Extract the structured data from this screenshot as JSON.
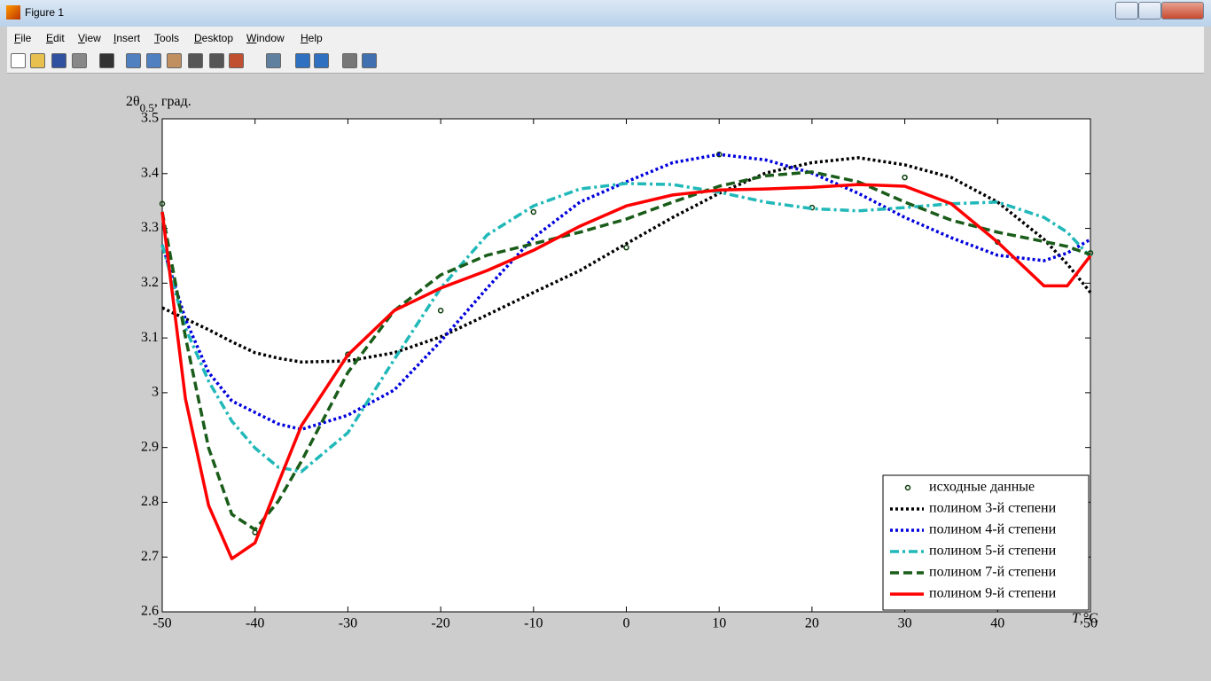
{
  "window": {
    "title": "Figure 1",
    "menu": [
      "File",
      "Edit",
      "View",
      "Insert",
      "Tools",
      "Desktop",
      "Window",
      "Help"
    ]
  },
  "chart_data": {
    "type": "line",
    "ylabel": [
      "2θ",
      "0.5",
      ", град."
    ],
    "xlabel": [
      "T",
      ",°C"
    ],
    "xlim": [
      -50,
      50
    ],
    "ylim": [
      2.6,
      3.5
    ],
    "xticks": [
      -50,
      -40,
      -30,
      -20,
      -10,
      0,
      10,
      20,
      30,
      40,
      50
    ],
    "yticks": [
      2.6,
      2.7,
      2.8,
      2.9,
      3,
      3.1,
      3.2,
      3.3,
      3.4,
      3.5
    ],
    "legend": "lower right",
    "x": [
      -50,
      -47.5,
      -45,
      -42.5,
      -40,
      -37.5,
      -35,
      -30,
      -25,
      -20,
      -15,
      -10,
      -5,
      0,
      5,
      10,
      15,
      20,
      25,
      30,
      35,
      40,
      45,
      47.5,
      50
    ],
    "series": [
      {
        "name": "исходные данные",
        "color": "#0b3d0b",
        "marker": "o",
        "x": [
          -50,
          -40,
          -30,
          -20,
          -10,
          0,
          10,
          20,
          30,
          40,
          50
        ],
        "values": [
          3.345,
          2.745,
          3.07,
          3.15,
          3.33,
          3.265,
          3.435,
          3.338,
          3.393,
          3.275,
          3.255
        ]
      },
      {
        "name": "полином 3-й степени",
        "color": "#000000",
        "linestyle": "dotted",
        "values": [
          3.155,
          3.135,
          3.115,
          3.093,
          3.073,
          3.063,
          3.056,
          3.058,
          3.073,
          3.102,
          3.142,
          3.183,
          3.223,
          3.272,
          3.32,
          3.364,
          3.401,
          3.42,
          3.429,
          3.416,
          3.393,
          3.348,
          3.28,
          3.235,
          3.183
        ]
      },
      {
        "name": "полином 4-й степени",
        "color": "#0000dd",
        "linestyle": "dotted",
        "values": [
          3.27,
          3.134,
          3.037,
          2.985,
          2.964,
          2.943,
          2.933,
          2.959,
          3.005,
          3.094,
          3.191,
          3.283,
          3.348,
          3.385,
          3.42,
          3.435,
          3.425,
          3.401,
          3.364,
          3.32,
          3.283,
          3.251,
          3.241,
          3.255,
          3.28
        ]
      },
      {
        "name": "полином 5-й степени",
        "color": "#20b8b8",
        "linestyle": "dashdot",
        "values": [
          3.27,
          3.118,
          3.021,
          2.948,
          2.899,
          2.864,
          2.856,
          2.927,
          3.061,
          3.191,
          3.288,
          3.341,
          3.372,
          3.382,
          3.38,
          3.366,
          3.348,
          3.336,
          3.332,
          3.338,
          3.345,
          3.348,
          3.32,
          3.293,
          3.248
        ]
      },
      {
        "name": "полином 7-й степени",
        "color": "#1a5c1a",
        "linestyle": "dashed",
        "values": [
          3.33,
          3.102,
          2.899,
          2.778,
          2.75,
          2.802,
          2.875,
          3.037,
          3.15,
          3.215,
          3.251,
          3.272,
          3.293,
          3.317,
          3.348,
          3.377,
          3.396,
          3.403,
          3.385,
          3.348,
          3.315,
          3.293,
          3.276,
          3.267,
          3.252
        ]
      },
      {
        "name": "полином 9-й степени",
        "color": "#ff0000",
        "linestyle": "solid",
        "values": [
          3.33,
          2.989,
          2.794,
          2.697,
          2.726,
          2.835,
          2.94,
          3.069,
          3.15,
          3.191,
          3.223,
          3.26,
          3.304,
          3.341,
          3.361,
          3.37,
          3.372,
          3.375,
          3.38,
          3.377,
          3.345,
          3.275,
          3.195,
          3.195,
          3.25
        ]
      }
    ]
  }
}
